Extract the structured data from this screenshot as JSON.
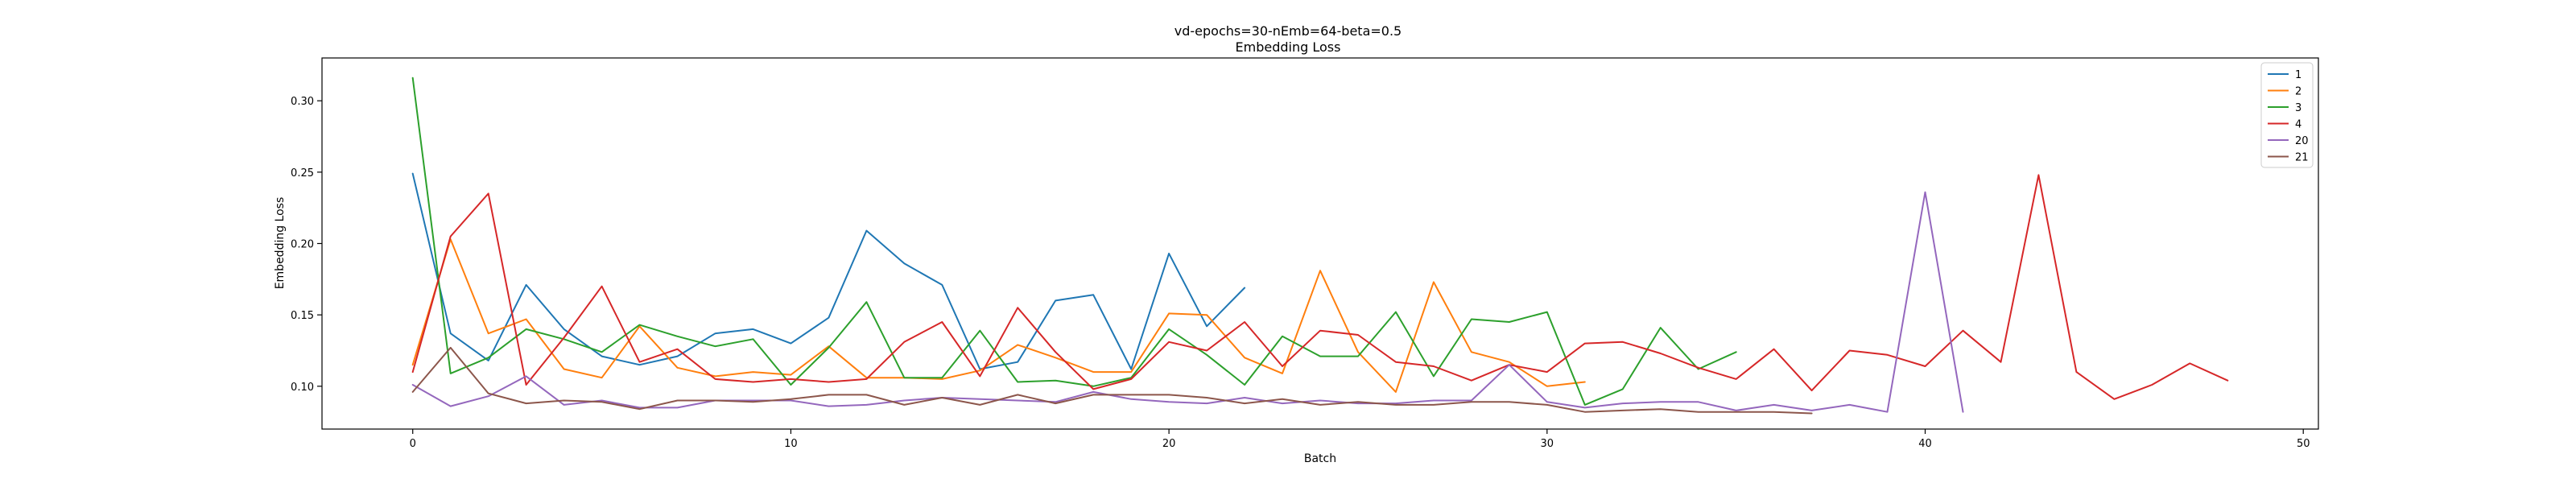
{
  "chart_data": {
    "type": "line",
    "title": "vd-epochs=30-nEmb=64-beta=0.5",
    "subtitle": "Embedding Loss",
    "xlabel": "Batch",
    "ylabel": "Embedding Loss",
    "xlim": [
      -2.4,
      50.4
    ],
    "ylim": [
      0.07,
      0.33
    ],
    "xticks": [
      0,
      10,
      20,
      30,
      40,
      50
    ],
    "yticks": [
      0.1,
      0.15,
      0.2,
      0.25,
      0.3
    ],
    "grid": false,
    "legend_position": "upper-right",
    "series": [
      {
        "name": "1",
        "color": "#1f77b4",
        "values": [
          0.249,
          0.137,
          0.118,
          0.171,
          0.14,
          0.121,
          0.115,
          0.121,
          0.137,
          0.14,
          0.13,
          0.148,
          0.209,
          0.186,
          0.171,
          0.112,
          0.117,
          0.16,
          0.164,
          0.112,
          0.193,
          0.142,
          0.169
        ]
      },
      {
        "name": "2",
        "color": "#ff7f0e",
        "values": [
          0.115,
          0.203,
          0.137,
          0.147,
          0.112,
          0.106,
          0.142,
          0.113,
          0.107,
          0.11,
          0.108,
          0.128,
          0.106,
          0.106,
          0.105,
          0.111,
          0.129,
          0.12,
          0.11,
          0.11,
          0.151,
          0.15,
          0.12,
          0.109,
          0.181,
          0.124,
          0.096,
          0.173,
          0.124,
          0.117,
          0.1,
          0.103
        ]
      },
      {
        "name": "3",
        "color": "#2ca02c",
        "values": [
          0.316,
          0.109,
          0.12,
          0.14,
          0.133,
          0.124,
          0.143,
          0.135,
          0.128,
          0.133,
          0.101,
          0.127,
          0.159,
          0.106,
          0.106,
          0.139,
          0.103,
          0.104,
          0.1,
          0.106,
          0.14,
          0.122,
          0.101,
          0.135,
          0.121,
          0.121,
          0.152,
          0.107,
          0.147,
          0.145,
          0.152,
          0.087,
          0.098,
          0.141,
          0.112,
          0.124
        ]
      },
      {
        "name": "4",
        "color": "#d62728",
        "values": [
          0.11,
          0.205,
          0.235,
          0.101,
          0.134,
          0.17,
          0.117,
          0.126,
          0.105,
          0.103,
          0.105,
          0.103,
          0.105,
          0.131,
          0.145,
          0.107,
          0.155,
          0.124,
          0.098,
          0.105,
          0.131,
          0.125,
          0.145,
          0.114,
          0.139,
          0.136,
          0.117,
          0.114,
          0.104,
          0.115,
          0.11,
          0.13,
          0.131,
          0.123,
          0.113,
          0.105,
          0.126,
          0.097,
          0.125,
          0.122,
          0.114,
          0.139,
          0.117,
          0.248,
          0.11,
          0.091,
          0.101,
          0.116,
          0.104
        ]
      },
      {
        "name": "20",
        "color": "#9467bd",
        "values": [
          0.101,
          0.086,
          0.093,
          0.107,
          0.087,
          0.09,
          0.085,
          0.085,
          0.09,
          0.09,
          0.09,
          0.086,
          0.087,
          0.09,
          0.092,
          0.091,
          0.09,
          0.089,
          0.096,
          0.091,
          0.089,
          0.088,
          0.092,
          0.088,
          0.09,
          0.088,
          0.088,
          0.09,
          0.09,
          0.115,
          0.089,
          0.085,
          0.088,
          0.089,
          0.089,
          0.083,
          0.087,
          0.083,
          0.087,
          0.082,
          0.236,
          0.082
        ]
      },
      {
        "name": "21",
        "color": "#8c564b",
        "values": [
          0.096,
          0.127,
          0.095,
          0.088,
          0.09,
          0.089,
          0.084,
          0.09,
          0.09,
          0.089,
          0.091,
          0.094,
          0.094,
          0.087,
          0.092,
          0.087,
          0.094,
          0.088,
          0.094,
          0.094,
          0.094,
          0.092,
          0.088,
          0.091,
          0.087,
          0.089,
          0.087,
          0.087,
          0.089,
          0.089,
          0.087,
          0.082,
          0.083,
          0.084,
          0.082,
          0.082,
          0.082,
          0.081
        ]
      }
    ]
  }
}
